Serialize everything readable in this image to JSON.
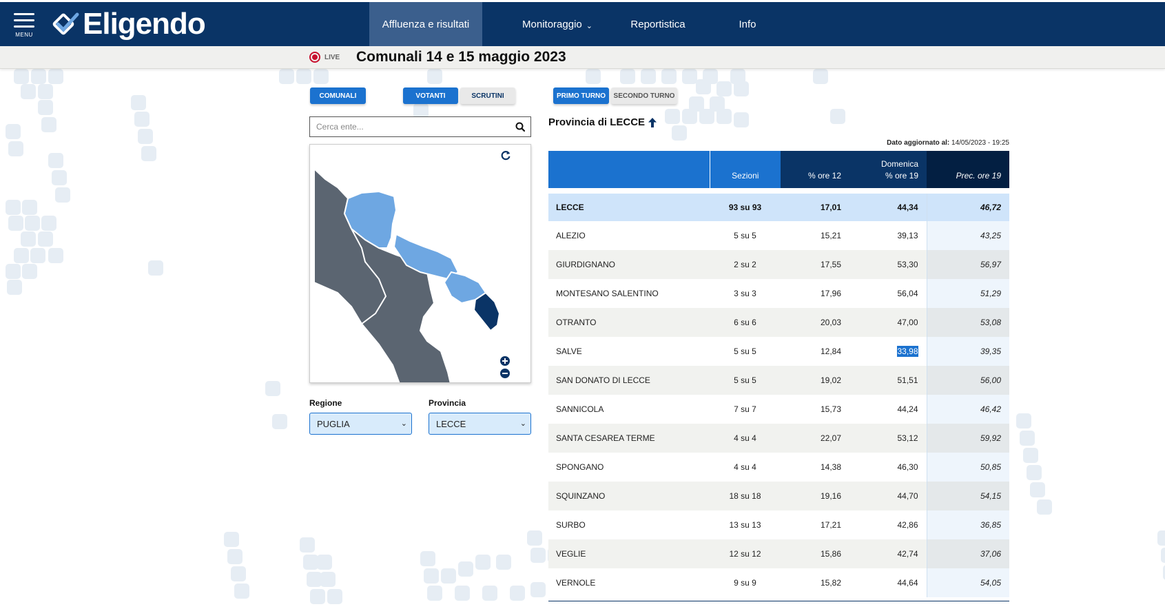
{
  "header": {
    "menu_label": "MENU",
    "logo_text": "Eligendo",
    "nav": [
      {
        "label": "Affluenza e risultati",
        "active": true
      },
      {
        "label": "Monitoraggio"
      },
      {
        "label": "Reportistica"
      },
      {
        "label": "Info"
      }
    ]
  },
  "subheader": {
    "live_label": "LIVE",
    "title": "Comunali 14 e 15 maggio 2023"
  },
  "filters": {
    "type_button": "COMUNALI",
    "votanti_button": "VOTANTI",
    "scrutini_button": "SCRUTINI",
    "primo_turno_button": "PRIMO TURNO",
    "secondo_turno_button": "SECONDO TURNO"
  },
  "search": {
    "placeholder": "Cerca ente..."
  },
  "selects": {
    "regione_label": "Regione",
    "regione_value": "PUGLIA",
    "provincia_label": "Provincia",
    "provincia_value": "LECCE"
  },
  "panel": {
    "title": "Provincia di LECCE",
    "updated_label": "Dato aggiornato al:",
    "updated_value": "14/05/2023 - 19:25"
  },
  "table": {
    "headers": {
      "sezioni": "Sezioni",
      "ore12": "% ore 12",
      "day": "Domenica",
      "ore19": "% ore 19",
      "prec": "Prec. ore 19"
    },
    "main_row": {
      "name": "LECCE",
      "sezioni": "93 su 93",
      "ore12": "17,01",
      "ore19": "44,34",
      "prec": "46,72"
    },
    "rows": [
      {
        "name": "ALEZIO",
        "sezioni": "5 su 5",
        "ore12": "15,21",
        "ore19": "39,13",
        "prec": "43,25"
      },
      {
        "name": "GIURDIGNANO",
        "sezioni": "2 su 2",
        "ore12": "17,55",
        "ore19": "53,30",
        "prec": "56,97"
      },
      {
        "name": "MONTESANO SALENTINO",
        "sezioni": "3 su 3",
        "ore12": "17,96",
        "ore19": "56,04",
        "prec": "51,29"
      },
      {
        "name": "OTRANTO",
        "sezioni": "6 su 6",
        "ore12": "20,03",
        "ore19": "47,00",
        "prec": "53,08"
      },
      {
        "name": "SALVE",
        "sezioni": "5 su 5",
        "ore12": "12,84",
        "ore19": "33,98",
        "prec": "39,35",
        "highlight": true
      },
      {
        "name": "SAN DONATO DI LECCE",
        "sezioni": "5 su 5",
        "ore12": "19,02",
        "ore19": "51,51",
        "prec": "56,00"
      },
      {
        "name": "SANNICOLA",
        "sezioni": "7 su 7",
        "ore12": "15,73",
        "ore19": "44,24",
        "prec": "46,42"
      },
      {
        "name": "SANTA CESAREA TERME",
        "sezioni": "4 su 4",
        "ore12": "22,07",
        "ore19": "53,12",
        "prec": "59,92"
      },
      {
        "name": "SPONGANO",
        "sezioni": "4 su 4",
        "ore12": "14,38",
        "ore19": "46,30",
        "prec": "50,85"
      },
      {
        "name": "SQUINZANO",
        "sezioni": "18 su 18",
        "ore12": "19,16",
        "ore19": "44,70",
        "prec": "54,15"
      },
      {
        "name": "SURBO",
        "sezioni": "13 su 13",
        "ore12": "17,21",
        "ore19": "42,86",
        "prec": "36,85"
      },
      {
        "name": "VEGLIE",
        "sezioni": "12 su 12",
        "ore12": "15,86",
        "ore19": "42,74",
        "prec": "37,06"
      },
      {
        "name": "VERNOLE",
        "sezioni": "9 su 9",
        "ore12": "15,82",
        "ore19": "44,64",
        "prec": "54,05"
      }
    ]
  },
  "colors": {
    "navy": "#0a3466",
    "accent_blue": "#1b72cf",
    "map_light": "#6ea7e2",
    "map_dark": "#5b6571",
    "map_selected": "#0a3466"
  }
}
